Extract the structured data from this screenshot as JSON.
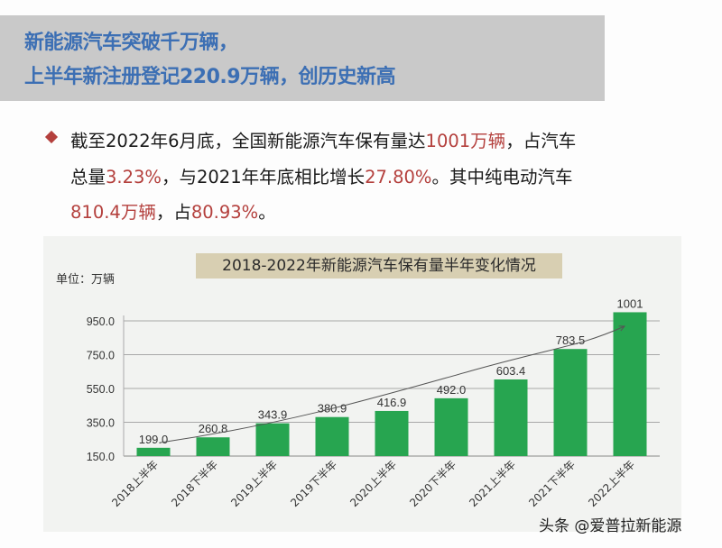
{
  "header": {
    "line1": "新能源汽车突破千万辆，",
    "line2": "上半年新注册登记220.9万辆，创历史新高"
  },
  "paragraph": {
    "l1a": "截至2022年6月底，全国新能源汽车保有量达",
    "l1b": "1001万辆",
    "l1c": "，占汽车",
    "l2a": "总量",
    "l2b": "3.23%",
    "l2c": "，与2021年年底相比增长",
    "l2d": "27.80%",
    "l2e": "。其中纯电动汽车",
    "l3a": "810.4万辆",
    "l3b": "，占",
    "l3c": "80.93%",
    "l3d": "。"
  },
  "colors": {
    "title_blue": "#3c6fb4",
    "highlight_red": "#b4403d",
    "bar_green": "#27a550",
    "title_box": "#d8cfb2"
  },
  "chart_data": {
    "type": "bar",
    "title": "2018-2022年新能源汽车保有量半年变化情况",
    "ylabel": "单位：万辆",
    "categories": [
      "2018上半年",
      "2018下半年",
      "2019上半年",
      "2019下半年",
      "2020上半年",
      "2020下半年",
      "2021上半年",
      "2021下半年",
      "2022上半年"
    ],
    "values": [
      199.0,
      260.8,
      343.9,
      380.9,
      416.9,
      492.0,
      603.4,
      783.5,
      1001
    ],
    "value_labels": [
      "199.0",
      "260.8",
      "343.9",
      "380.9",
      "416.9",
      "492.0",
      "603.4",
      "783.5",
      "1001"
    ],
    "yticks": [
      "150.0",
      "350.0",
      "550.0",
      "750.0",
      "950.0"
    ],
    "ylim": [
      150,
      1050
    ],
    "grid": true,
    "trend_arrow": true
  },
  "watermark": "头条 @爱普拉新能源"
}
